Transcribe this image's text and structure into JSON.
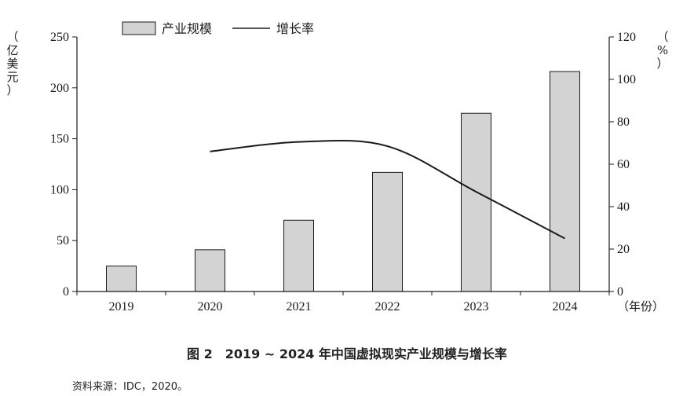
{
  "chart_data": {
    "type": "bar",
    "categories": [
      "2019",
      "2020",
      "2021",
      "2022",
      "2023",
      "2024"
    ],
    "series": [
      {
        "name": "产业规模",
        "type": "bar",
        "axis": "left",
        "values": [
          25,
          41,
          70,
          117,
          175,
          216
        ]
      },
      {
        "name": "增长率",
        "type": "line",
        "axis": "right",
        "values": [
          null,
          66,
          70.5,
          68.5,
          47,
          25
        ]
      }
    ],
    "left_axis": {
      "label": [
        "（",
        "亿",
        "美",
        "元",
        "）"
      ],
      "ylim": [
        0,
        250
      ],
      "ticks": [
        0,
        50,
        100,
        150,
        200,
        250
      ]
    },
    "right_axis": {
      "label": [
        "（",
        "%",
        "）"
      ],
      "ylim": [
        0,
        120
      ],
      "ticks": [
        0,
        20,
        40,
        60,
        80,
        100,
        120
      ]
    },
    "x_unit": "（年份）",
    "legend_position": "top-left",
    "grid": false,
    "colors": {
      "bar_fill": "#d3d3d3",
      "bar_stroke": "#1a1a1a",
      "line": "#1a1a1a"
    }
  },
  "caption": "图 2　2019 ~ 2024 年中国虚拟现实产业规模与增长率",
  "source": "资料来源：IDC，2020。"
}
